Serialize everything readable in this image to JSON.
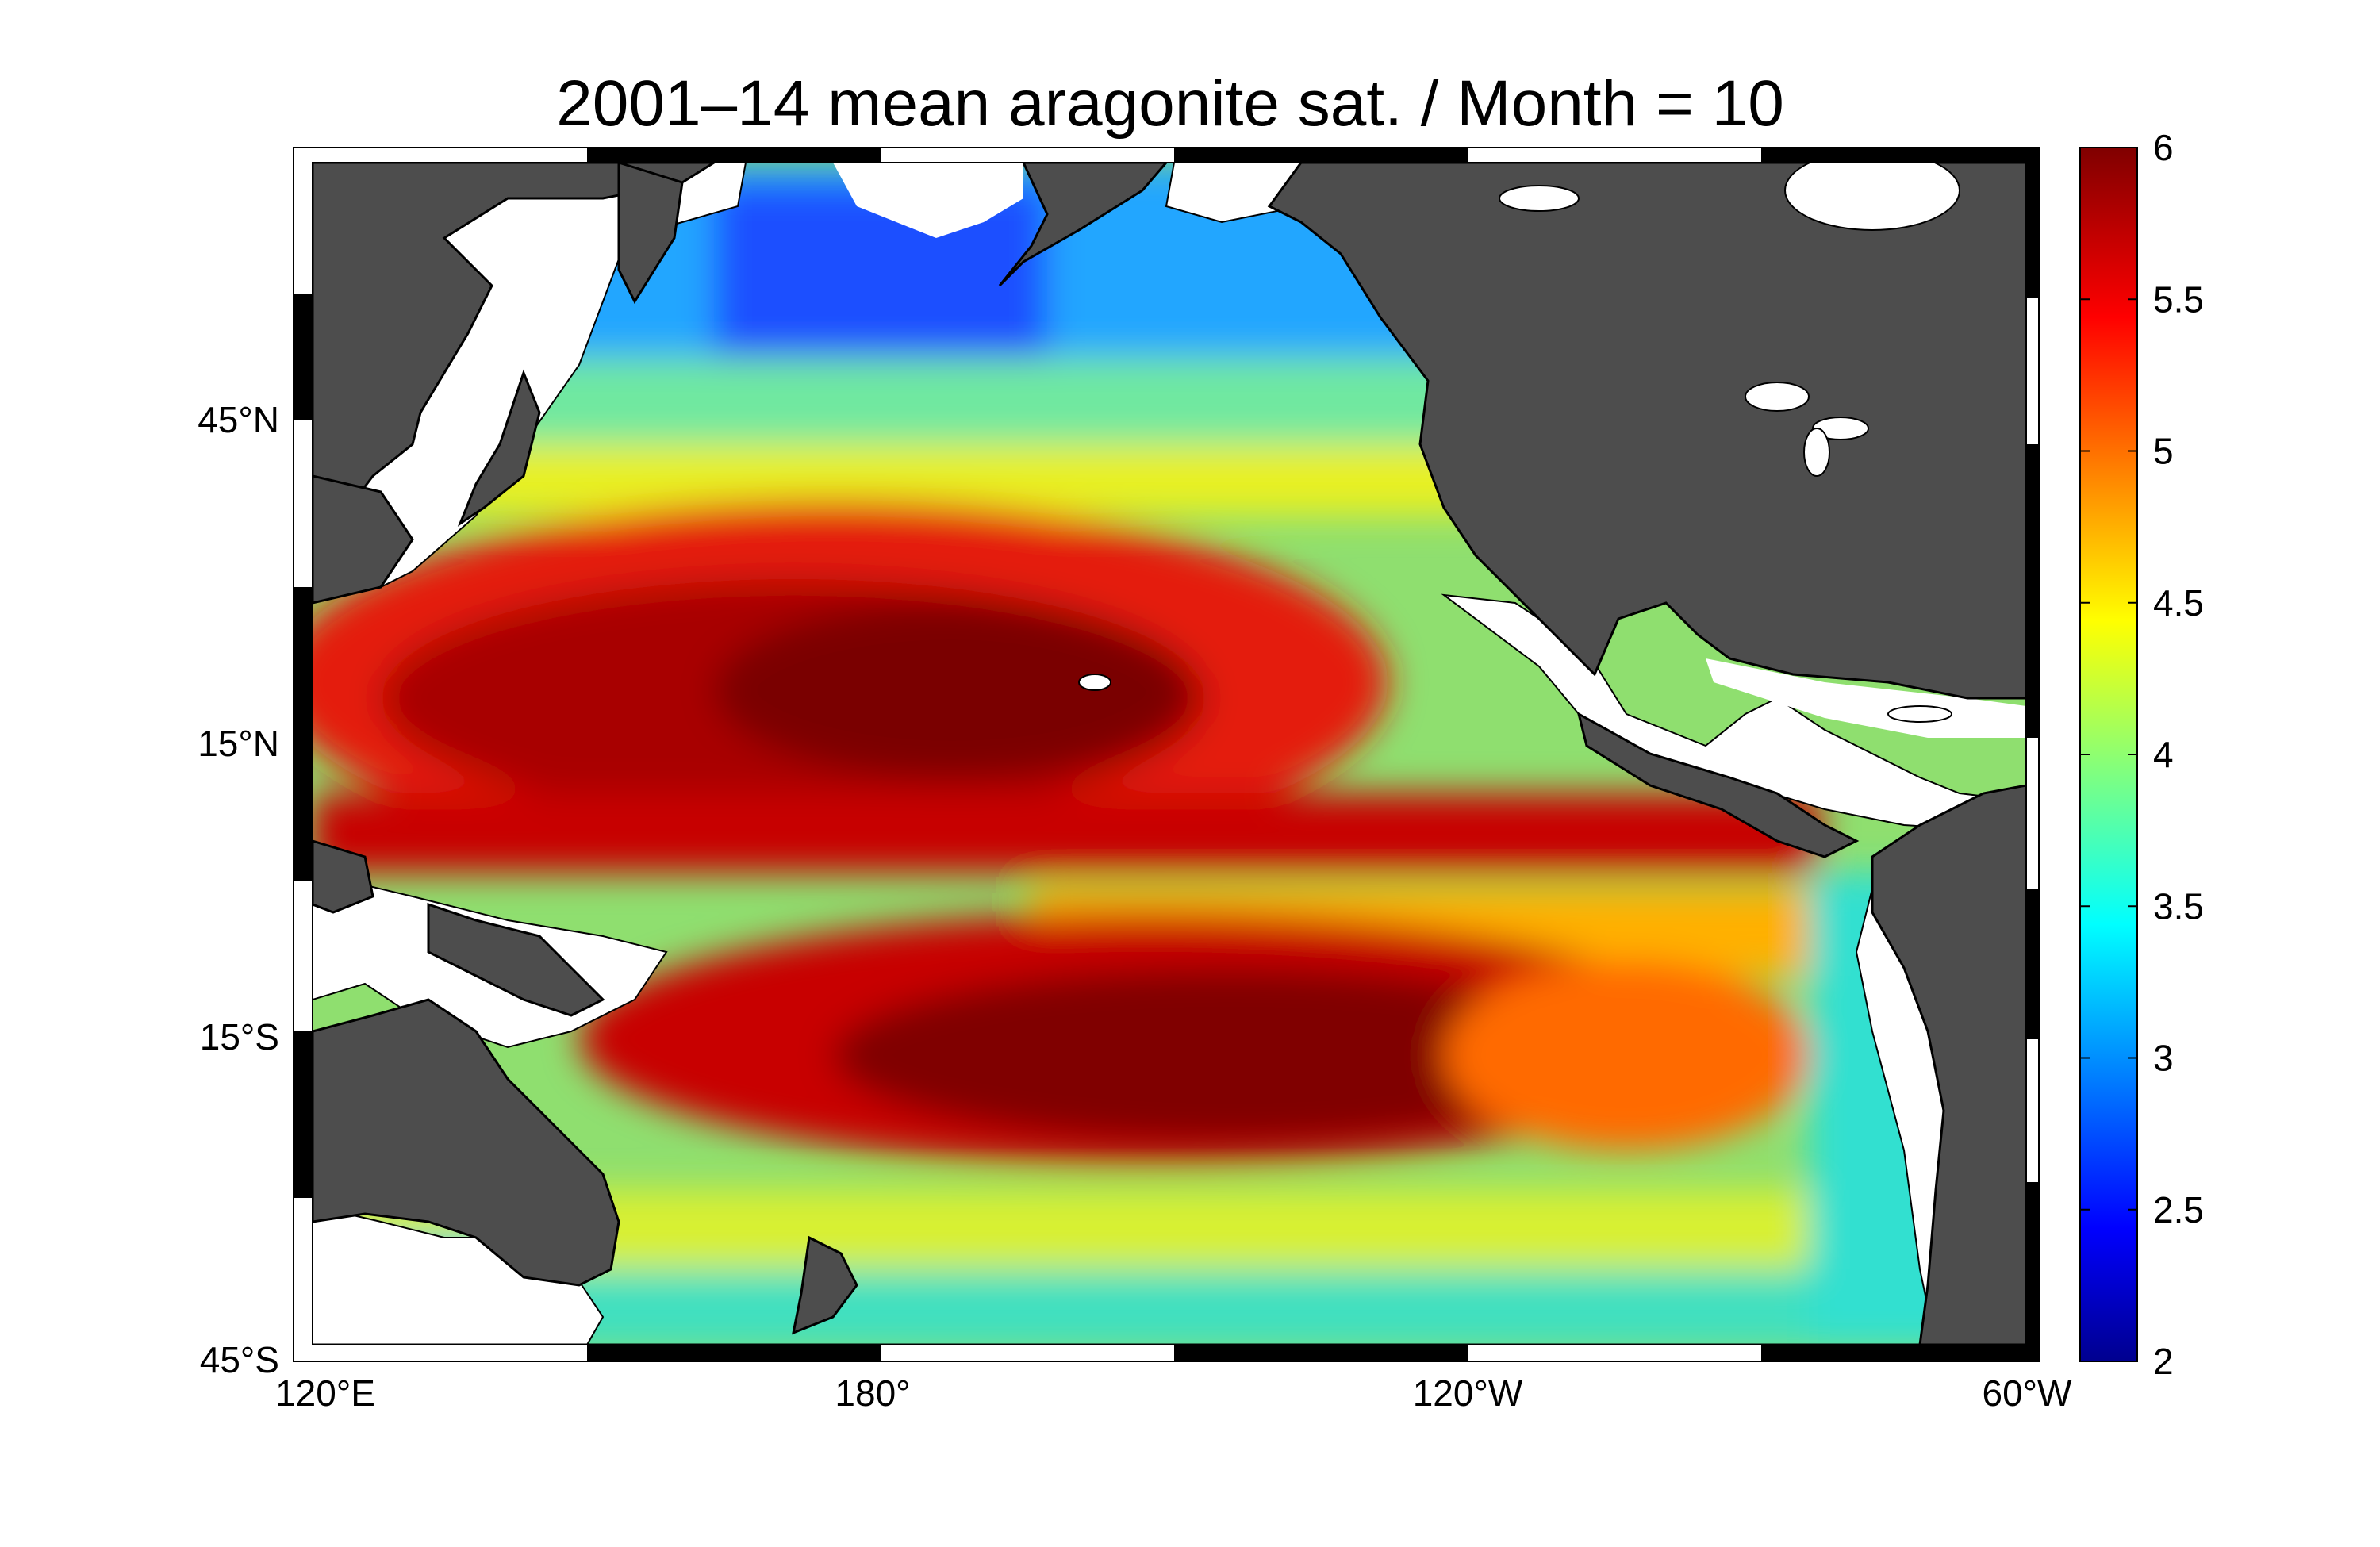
{
  "title": "2001–14 mean aragonite sat. / Month = 10",
  "map": {
    "lon_labels": [
      "120°E",
      "180°",
      "120°W",
      "60°W"
    ],
    "lat_labels": [
      "45°N",
      "15°N",
      "15°S",
      "45°S"
    ],
    "lon_values": [
      120,
      180,
      240,
      300
    ],
    "lat_values": [
      45,
      15,
      -15,
      -45
    ],
    "lon_range": [
      120,
      300
    ],
    "lat_range": [
      -45,
      60
    ],
    "land_color": "#4d4d4d",
    "ice_color": "#ffffff"
  },
  "colorbar": {
    "ticks": [
      "2",
      "2.5",
      "3",
      "3.5",
      "4",
      "4.5",
      "5",
      "5.5",
      "6"
    ],
    "range": [
      2,
      6
    ],
    "colormap": "jet",
    "stops": [
      "#00008f",
      "#0000ff",
      "#00ffff",
      "#ffff00",
      "#ff0000",
      "#800000"
    ]
  }
}
